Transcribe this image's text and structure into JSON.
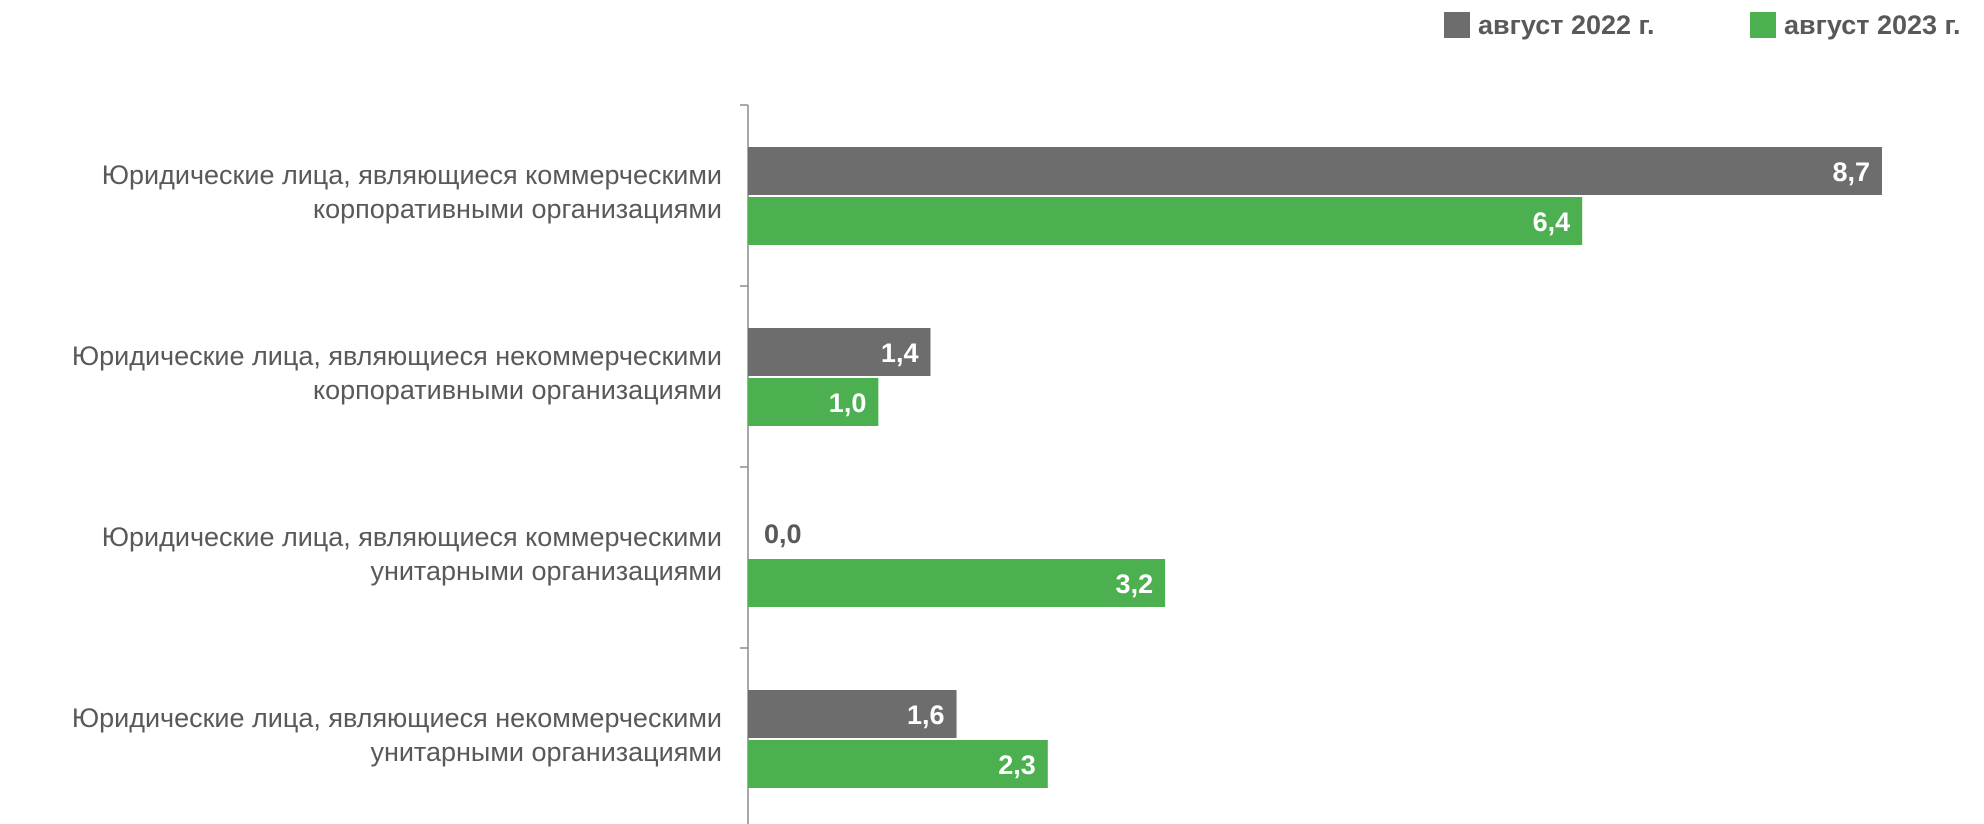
{
  "chart_data": {
    "type": "bar",
    "orientation": "horizontal",
    "categories": [
      [
        "Юридические лица, являющиеся коммерческими",
        "корпоративными организациями"
      ],
      [
        "Юридические лица, являющиеся некоммерческими",
        "корпоративными организациями"
      ],
      [
        "Юридические лица, являющиеся коммерческими",
        "унитарными организациями"
      ],
      [
        "Юридические лица, являющиеся некоммерческими",
        "унитарными организациями"
      ]
    ],
    "series": [
      {
        "name": "август 2022 г.",
        "color": "#6d6d6d",
        "values": [
          8.7,
          1.4,
          0.0,
          1.6
        ],
        "labels": [
          "8,7",
          "1,4",
          "0,0",
          "1,6"
        ]
      },
      {
        "name": "август 2023 г.",
        "color": "#4caf50",
        "values": [
          6.4,
          1.0,
          3.2,
          2.3
        ],
        "labels": [
          "6,4",
          "1,0",
          "3,2",
          "2,3"
        ]
      }
    ],
    "xlim": [
      0,
      10
    ],
    "legend_position": "top-right",
    "grid": false
  }
}
